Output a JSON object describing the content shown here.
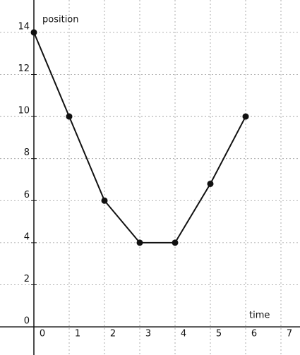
{
  "chart_data": {
    "type": "line",
    "x_label": "time",
    "y_label": "position",
    "x": [
      0,
      1,
      2,
      3,
      4,
      5,
      6
    ],
    "series": [
      {
        "name": "position",
        "color": "#111111",
        "values": [
          14,
          10,
          6,
          4,
          4,
          6.8,
          10
        ]
      }
    ],
    "xlim": [
      -0.96,
      7.54
    ],
    "ylim": [
      -1.34,
      15.54
    ],
    "xticks": [
      0,
      1,
      2,
      3,
      4,
      5,
      6,
      7
    ],
    "yticks": [
      0,
      2,
      4,
      6,
      8,
      10,
      12,
      14
    ],
    "grid": true
  }
}
